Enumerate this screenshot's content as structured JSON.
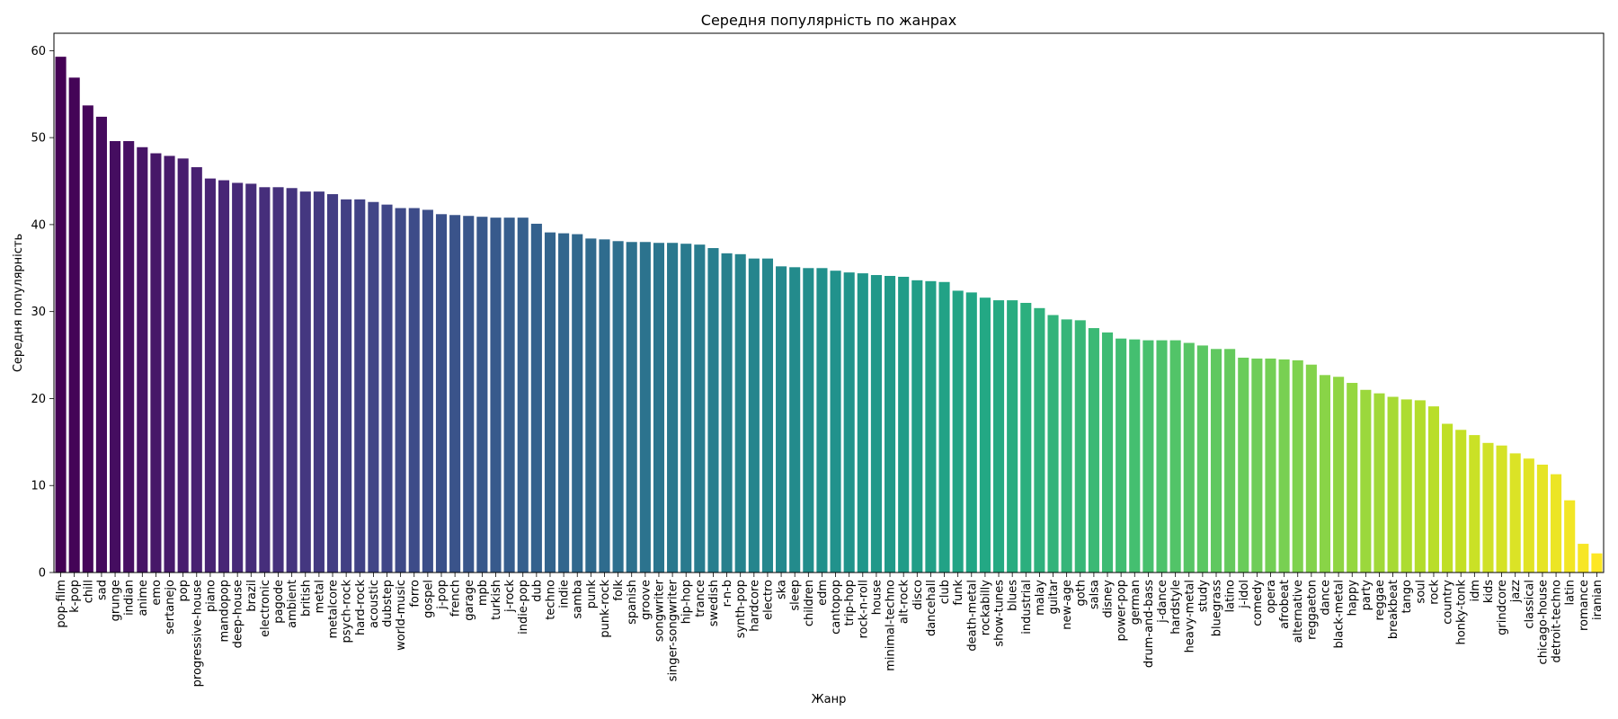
{
  "chart_data": {
    "type": "bar",
    "title": "Середня популярність по жанрах",
    "xlabel": "Жанр",
    "ylabel": "Середня популярність",
    "ylim": [
      0,
      62
    ],
    "yticks": [
      0,
      10,
      20,
      30,
      40,
      50,
      60
    ],
    "grid": false,
    "legend": "none",
    "colormap": "viridis",
    "colors": {
      "start": "#440154",
      "mid": "#21918c",
      "end": "#fde725"
    },
    "categories": [
      "pop-film",
      "k-pop",
      "chill",
      "sad",
      "grunge",
      "indian",
      "anime",
      "emo",
      "sertanejo",
      "pop",
      "progressive-house",
      "piano",
      "mandopop",
      "deep-house",
      "brazil",
      "electronic",
      "pagode",
      "ambient",
      "british",
      "metal",
      "metalcore",
      "psych-rock",
      "hard-rock",
      "acoustic",
      "dubstep",
      "world-music",
      "forro",
      "gospel",
      "j-pop",
      "french",
      "garage",
      "mpb",
      "turkish",
      "j-rock",
      "indie-pop",
      "dub",
      "techno",
      "indie",
      "samba",
      "punk",
      "punk-rock",
      "folk",
      "spanish",
      "groove",
      "songwriter",
      "singer-songwriter",
      "hip-hop",
      "trance",
      "swedish",
      "r-n-b",
      "synth-pop",
      "hardcore",
      "electro",
      "ska",
      "sleep",
      "children",
      "edm",
      "cantopop",
      "trip-hop",
      "rock-n-roll",
      "house",
      "minimal-techno",
      "alt-rock",
      "disco",
      "dancehall",
      "club",
      "funk",
      "death-metal",
      "rockabilly",
      "show-tunes",
      "blues",
      "industrial",
      "malay",
      "guitar",
      "new-age",
      "goth",
      "salsa",
      "disney",
      "power-pop",
      "german",
      "drum-and-bass",
      "j-dance",
      "hardstyle",
      "heavy-metal",
      "study",
      "bluegrass",
      "latino",
      "j-idol",
      "comedy",
      "opera",
      "afrobeat",
      "alternative",
      "reggaeton",
      "dance",
      "black-metal",
      "happy",
      "party",
      "reggae",
      "breakbeat",
      "tango",
      "soul",
      "rock",
      "country",
      "honky-tonk",
      "idm",
      "kids",
      "grindcore",
      "jazz",
      "classical",
      "chicago-house",
      "detroit-techno",
      "latin",
      "romance",
      "iranian"
    ],
    "values": [
      59.3,
      56.9,
      53.7,
      52.4,
      49.6,
      49.6,
      48.9,
      48.2,
      47.9,
      47.6,
      46.6,
      45.3,
      45.1,
      44.8,
      44.7,
      44.3,
      44.3,
      44.2,
      43.8,
      43.8,
      43.5,
      42.9,
      42.9,
      42.6,
      42.3,
      41.9,
      41.9,
      41.7,
      41.2,
      41.1,
      41.0,
      40.9,
      40.8,
      40.8,
      40.8,
      40.1,
      39.1,
      39.0,
      38.9,
      38.4,
      38.3,
      38.1,
      38.0,
      38.0,
      37.9,
      37.9,
      37.8,
      37.7,
      37.3,
      36.7,
      36.6,
      36.1,
      36.1,
      35.2,
      35.1,
      35.0,
      35.0,
      34.7,
      34.5,
      34.4,
      34.2,
      34.1,
      34.0,
      33.6,
      33.5,
      33.4,
      32.4,
      32.2,
      31.6,
      31.3,
      31.3,
      31.0,
      30.4,
      29.6,
      29.1,
      29.0,
      28.1,
      27.6,
      26.9,
      26.8,
      26.7,
      26.7,
      26.7,
      26.4,
      26.1,
      25.7,
      25.7,
      24.7,
      24.6,
      24.6,
      24.5,
      24.4,
      23.9,
      22.7,
      22.5,
      21.8,
      21.0,
      20.6,
      20.2,
      19.9,
      19.8,
      19.1,
      17.1,
      16.4,
      15.8,
      14.9,
      14.6,
      13.7,
      13.1,
      12.4,
      11.3,
      8.3,
      3.3,
      2.2
    ]
  }
}
